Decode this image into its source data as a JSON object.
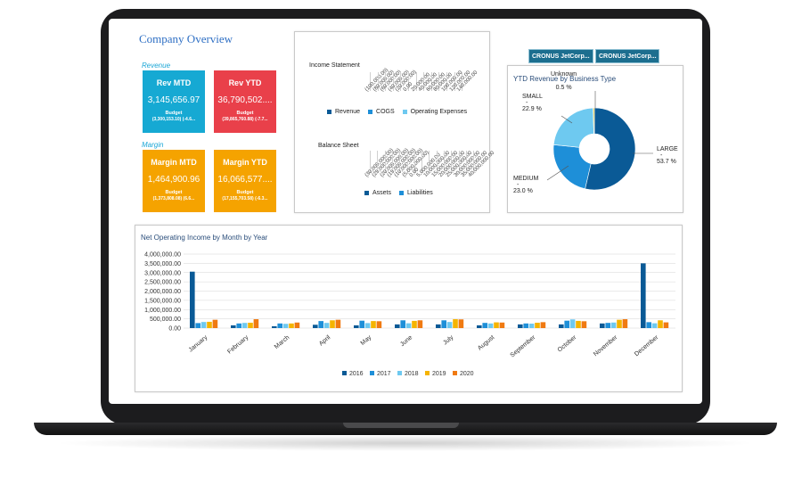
{
  "page": {
    "title": "Company Overview"
  },
  "kpis": {
    "revenue_label": "Revenue",
    "margin_label": "Margin",
    "budget_label": "Budget",
    "tiles": [
      {
        "title": "Rev MTD",
        "value": "3,145,656.97",
        "budget": "(3,300,153.10) (-4.6...",
        "color": "#16a9d3"
      },
      {
        "title": "Rev YTD",
        "value": "36,790,502....",
        "budget": "(39,865,760.88) (-7.7...",
        "color": "#e9404a"
      },
      {
        "title": "Margin MTD",
        "value": "1,464,900.96",
        "budget": "(1,373,808.08) (6.6...",
        "color": "#f5a300"
      },
      {
        "title": "Margin YTD",
        "value": "16,066,577....",
        "budget": "(17,155,703.58) (-6.3...",
        "color": "#f5a300"
      }
    ]
  },
  "income_statement": {
    "label": "Income Statement",
    "ticks": [
      "(100,000.00)",
      "(80,000.00)",
      "(60,000.00)",
      "(40,000.00)",
      "(20,000.00)",
      "0.00",
      "20,000.00",
      "40,000.00",
      "60,000.00",
      "80,000.00",
      "100,000.00",
      "120,000.00",
      "140,000.00"
    ],
    "legend": [
      {
        "name": "Revenue",
        "color": "#0a5a96"
      },
      {
        "name": "COGS",
        "color": "#1e8fd8"
      },
      {
        "name": "Operating Expenses",
        "color": "#6ec9f0"
      }
    ]
  },
  "balance_sheet": {
    "label": "Balance Sheet",
    "ticks": [
      "(30,000,000.00)",
      "(25,000,000.00)",
      "(20,000,000.00)",
      "(15,000,000.00)",
      "(10,000,000.00)",
      "(5,000,000.00)",
      "0.00",
      "5,000,000.00",
      "10,000,000.00",
      "15,000,000.00",
      "20,000,000.00",
      "25,000,000.00",
      "30,000,000.00",
      "35,000,000.00",
      "40,000,000.00"
    ],
    "legend": [
      {
        "name": "Assets",
        "color": "#0a5a96"
      },
      {
        "name": "Liabilities",
        "color": "#1e8fd8"
      }
    ]
  },
  "company_tabs": [
    "CRONUS JetCorp...",
    "CRONUS JetCorp..."
  ],
  "ytd_revenue": {
    "title": "YTD Revenue by Business Type",
    "slices": [
      {
        "label": "LARGE",
        "pct_label": "53.7 %",
        "value": 53.7,
        "color": "#0a5a96"
      },
      {
        "label": "MEDIUM",
        "pct_label": "23.0 %",
        "value": 23.0,
        "color": "#1e8fd8"
      },
      {
        "label": "SMALL",
        "pct_label": "22.9 %",
        "value": 22.9,
        "color": "#6ec9f0"
      },
      {
        "label": "Unknown",
        "pct_label": "0.5 %",
        "value": 0.5,
        "color": "#e8c21a"
      }
    ],
    "dash": "-"
  },
  "chart_data": {
    "type": "bar",
    "title": "Net Operating Income by Month by Year",
    "categories": [
      "January",
      "February",
      "March",
      "April",
      "May",
      "June",
      "July",
      "August",
      "September",
      "October",
      "November",
      "December"
    ],
    "ylim": [
      0,
      4000000
    ],
    "y_ticks": [
      "4,000,000.00",
      "3,500,000.00",
      "3,000,000.00",
      "2,500,000.00",
      "2,000,000.00",
      "1,500,000.00",
      "1,000,000.00",
      "500,000.00",
      "0.00"
    ],
    "grid": true,
    "legend_position": "bottom",
    "series": [
      {
        "name": "2016",
        "color": "#0a5a96",
        "values": [
          3050000,
          150000,
          100000,
          180000,
          150000,
          200000,
          200000,
          150000,
          200000,
          200000,
          250000,
          3500000
        ]
      },
      {
        "name": "2017",
        "color": "#1e8fd8",
        "values": [
          270000,
          250000,
          250000,
          380000,
          400000,
          420000,
          420000,
          280000,
          250000,
          400000,
          280000,
          320000
        ]
      },
      {
        "name": "2018",
        "color": "#6ec9f0",
        "values": [
          330000,
          280000,
          230000,
          280000,
          270000,
          260000,
          330000,
          250000,
          240000,
          470000,
          300000,
          260000
        ]
      },
      {
        "name": "2019",
        "color": "#f5b400",
        "values": [
          340000,
          290000,
          250000,
          420000,
          380000,
          390000,
          480000,
          310000,
          290000,
          390000,
          450000,
          420000
        ]
      },
      {
        "name": "2020",
        "color": "#f07a12",
        "values": [
          450000,
          480000,
          300000,
          450000,
          370000,
          420000,
          470000,
          300000,
          320000,
          370000,
          480000,
          310000
        ]
      }
    ]
  }
}
